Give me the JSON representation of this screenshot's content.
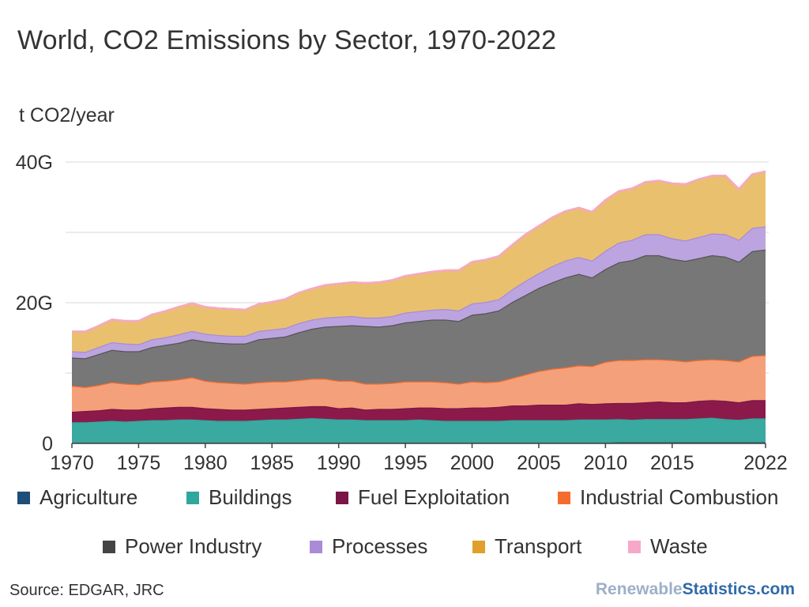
{
  "title": "World, CO2 Emissions by Sector, 1970-2022",
  "unit_label": "t CO2/year",
  "source": "Source: EDGAR, JRC",
  "brand": {
    "part1": "Renewable",
    "part2": "Statistics.com"
  },
  "chart_data": {
    "type": "area",
    "stacked": true,
    "x": [
      1970,
      1971,
      1972,
      1973,
      1974,
      1975,
      1976,
      1977,
      1978,
      1979,
      1980,
      1981,
      1982,
      1983,
      1984,
      1985,
      1986,
      1987,
      1988,
      1989,
      1990,
      1991,
      1992,
      1993,
      1994,
      1995,
      1996,
      1997,
      1998,
      1999,
      2000,
      2001,
      2002,
      2003,
      2004,
      2005,
      2006,
      2007,
      2008,
      2009,
      2010,
      2011,
      2012,
      2013,
      2014,
      2015,
      2016,
      2017,
      2018,
      2019,
      2020,
      2021,
      2022
    ],
    "x_tick_labels": [
      "1970",
      "1975",
      "1980",
      "1985",
      "1990",
      "1995",
      "2000",
      "2005",
      "2010",
      "2015",
      "2022"
    ],
    "x_tick_values": [
      1970,
      1975,
      1980,
      1985,
      1990,
      1995,
      2000,
      2005,
      2010,
      2015,
      2022
    ],
    "y_tick_labels": [
      "0",
      "20G",
      "40G"
    ],
    "y_tick_values": [
      0,
      20,
      40
    ],
    "ylim": [
      0,
      40
    ],
    "gridline_values": [
      10,
      20,
      30,
      40
    ],
    "series": [
      {
        "name": "Agriculture",
        "color": "#1f4e79",
        "values": [
          0.1,
          0.1,
          0.1,
          0.1,
          0.1,
          0.1,
          0.1,
          0.1,
          0.1,
          0.1,
          0.1,
          0.1,
          0.1,
          0.1,
          0.1,
          0.1,
          0.1,
          0.1,
          0.1,
          0.1,
          0.1,
          0.1,
          0.1,
          0.1,
          0.1,
          0.1,
          0.1,
          0.1,
          0.1,
          0.1,
          0.1,
          0.1,
          0.1,
          0.1,
          0.1,
          0.1,
          0.1,
          0.1,
          0.1,
          0.1,
          0.1,
          0.15,
          0.15,
          0.15,
          0.15,
          0.15,
          0.15,
          0.15,
          0.15,
          0.15,
          0.15,
          0.15,
          0.15
        ]
      },
      {
        "name": "Buildings",
        "color": "#3aa99f",
        "values": [
          2.9,
          2.9,
          3.0,
          3.1,
          3.0,
          3.1,
          3.2,
          3.2,
          3.3,
          3.3,
          3.2,
          3.1,
          3.1,
          3.1,
          3.2,
          3.3,
          3.3,
          3.4,
          3.5,
          3.4,
          3.3,
          3.3,
          3.2,
          3.2,
          3.2,
          3.2,
          3.3,
          3.2,
          3.1,
          3.1,
          3.1,
          3.1,
          3.1,
          3.2,
          3.2,
          3.2,
          3.2,
          3.2,
          3.3,
          3.3,
          3.3,
          3.3,
          3.2,
          3.3,
          3.3,
          3.3,
          3.3,
          3.4,
          3.5,
          3.3,
          3.2,
          3.4,
          3.4
        ]
      },
      {
        "name": "Fuel Exploitation",
        "color": "#8b1a4a",
        "values": [
          1.5,
          1.6,
          1.6,
          1.7,
          1.7,
          1.6,
          1.7,
          1.8,
          1.8,
          1.8,
          1.7,
          1.7,
          1.6,
          1.6,
          1.6,
          1.6,
          1.7,
          1.7,
          1.7,
          1.8,
          1.6,
          1.7,
          1.5,
          1.6,
          1.6,
          1.7,
          1.7,
          1.8,
          1.8,
          1.8,
          1.9,
          1.9,
          2.0,
          2.1,
          2.1,
          2.2,
          2.2,
          2.2,
          2.3,
          2.2,
          2.3,
          2.3,
          2.4,
          2.4,
          2.5,
          2.4,
          2.4,
          2.5,
          2.5,
          2.6,
          2.5,
          2.6,
          2.6
        ]
      },
      {
        "name": "Industrial Combustion",
        "color": "#f4a07a",
        "values": [
          3.7,
          3.4,
          3.6,
          3.8,
          3.7,
          3.6,
          3.8,
          3.8,
          3.9,
          4.2,
          3.9,
          3.8,
          3.8,
          3.7,
          3.8,
          3.8,
          3.7,
          3.8,
          3.9,
          3.9,
          3.9,
          3.8,
          3.7,
          3.6,
          3.7,
          3.8,
          3.7,
          3.7,
          3.7,
          3.5,
          3.7,
          3.6,
          3.6,
          3.9,
          4.4,
          4.8,
          5.1,
          5.3,
          5.4,
          5.4,
          5.9,
          6.1,
          6.1,
          6.1,
          6.0,
          6.0,
          5.8,
          5.8,
          5.8,
          5.8,
          5.8,
          6.3,
          6.4
        ]
      },
      {
        "name": "Power Industry",
        "color": "#777777",
        "values": [
          4.0,
          4.1,
          4.4,
          4.6,
          4.6,
          4.7,
          4.9,
          5.1,
          5.2,
          5.4,
          5.6,
          5.6,
          5.6,
          5.7,
          6.1,
          6.2,
          6.4,
          6.8,
          7.1,
          7.4,
          7.8,
          7.9,
          8.2,
          8.1,
          8.2,
          8.4,
          8.6,
          8.8,
          8.9,
          8.9,
          9.5,
          9.8,
          10.1,
          10.8,
          11.3,
          11.8,
          12.3,
          12.8,
          13.0,
          12.6,
          13.2,
          13.9,
          14.2,
          14.8,
          14.8,
          14.4,
          14.3,
          14.5,
          14.8,
          14.7,
          14.2,
          14.9,
          15.0
        ]
      },
      {
        "name": "Processes",
        "color": "#bca4e0",
        "values": [
          0.9,
          0.9,
          1.0,
          1.1,
          1.1,
          1.0,
          1.1,
          1.1,
          1.2,
          1.2,
          1.1,
          1.1,
          1.1,
          1.1,
          1.2,
          1.2,
          1.2,
          1.3,
          1.3,
          1.3,
          1.3,
          1.3,
          1.2,
          1.3,
          1.3,
          1.4,
          1.4,
          1.4,
          1.5,
          1.5,
          1.6,
          1.6,
          1.6,
          1.8,
          2.0,
          2.1,
          2.3,
          2.4,
          2.4,
          2.4,
          2.6,
          2.8,
          2.9,
          3.0,
          3.0,
          2.9,
          2.9,
          3.0,
          3.1,
          3.2,
          3.1,
          3.3,
          3.3
        ]
      },
      {
        "name": "Transport",
        "color": "#e9c16e",
        "values": [
          2.8,
          2.9,
          3.0,
          3.2,
          3.2,
          3.3,
          3.5,
          3.7,
          3.9,
          3.9,
          3.8,
          3.8,
          3.8,
          3.7,
          3.8,
          3.9,
          4.1,
          4.3,
          4.4,
          4.6,
          4.7,
          4.8,
          4.9,
          5.0,
          5.1,
          5.2,
          5.3,
          5.4,
          5.5,
          5.7,
          5.9,
          6.0,
          6.1,
          6.3,
          6.6,
          6.7,
          6.9,
          7.0,
          7.0,
          6.9,
          7.2,
          7.3,
          7.3,
          7.4,
          7.6,
          7.8,
          8.0,
          8.2,
          8.2,
          8.3,
          7.2,
          7.6,
          7.8
        ]
      },
      {
        "name": "Waste",
        "color": "#f7a8c9",
        "values": [
          0,
          0,
          0,
          0,
          0,
          0,
          0,
          0,
          0,
          0,
          0,
          0,
          0,
          0,
          0,
          0,
          0,
          0,
          0,
          0,
          0,
          0,
          0,
          0,
          0,
          0,
          0,
          0,
          0,
          0,
          0,
          0,
          0,
          0,
          0,
          0,
          0,
          0,
          0,
          0,
          0,
          0,
          0,
          0,
          0,
          0,
          0,
          0,
          0,
          0,
          0,
          0,
          0
        ]
      }
    ],
    "series_edge_colors": [
      "#1f4e79",
      "#2fa79c",
      "#7a1645",
      "#f46c2e",
      "#555555",
      "#a98bd6",
      "#e0a02a",
      "#f7a8c9"
    ],
    "legend_swatch_colors": [
      "#1f4e79",
      "#2fa79c",
      "#7a1645",
      "#f46c2e",
      "#444444",
      "#a98bd6",
      "#e0a02a",
      "#f7a8c9"
    ],
    "legend_placement": "bottom",
    "grid": true
  }
}
